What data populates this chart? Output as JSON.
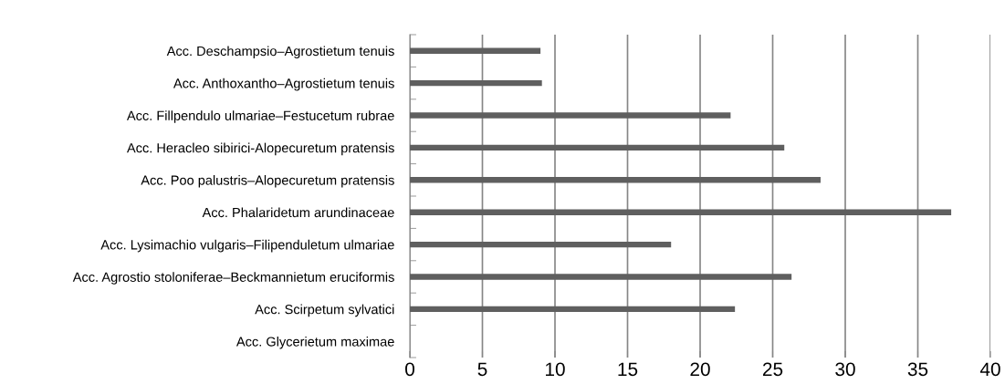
{
  "chart_data": {
    "type": "bar",
    "orientation": "horizontal",
    "categories": [
      "Acc. Deschampsio–Agrostietum tenuis",
      "Acc. Anthoxantho–Agrostietum tenuis",
      "Acc. Fillpendulo ulmariae–Festucetum rubrae",
      "Acc. Heracleo sibirici-Alopecuretum pratensis",
      "Acc. Poo palustris–Alopecuretum pratensis",
      "Acc. Phalaridetum arundinaceae",
      "Acc. Lysimachio vulgaris–Filipenduletum ulmariae",
      "Acc. Agrostio stoloniferae–Beckmannietum eruciformis",
      "Acc. Scirpetum sylvatici",
      "Acc. Glycerietum maximae"
    ],
    "values": [
      9.0,
      9.1,
      22.1,
      25.8,
      28.3,
      37.3,
      18.0,
      26.3,
      22.4,
      0
    ],
    "color": "#5f5f5f",
    "xlim": [
      0,
      40
    ],
    "xticks": [
      0,
      5,
      10,
      15,
      20,
      25,
      30,
      35,
      40
    ],
    "grid": "x",
    "legend": false
  }
}
